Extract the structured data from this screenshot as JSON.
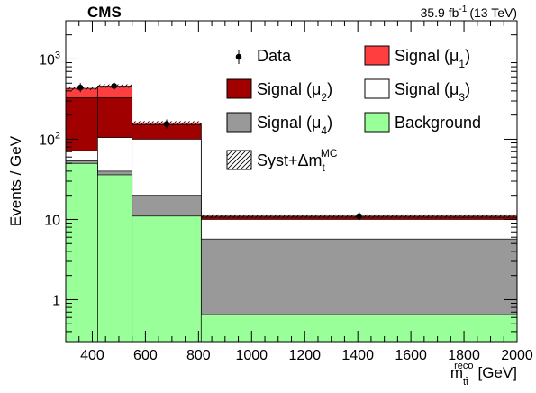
{
  "experiment": "CMS",
  "luminosity": {
    "value": "35.9 fb",
    "exponent": "-1",
    "energy": "(13 TeV)"
  },
  "chart_data": {
    "type": "histogram",
    "yscale": "log",
    "xlim": [
      300,
      2000
    ],
    "ylim": [
      0.3,
      3000
    ],
    "xlabel": {
      "main": "m",
      "sub": "tt̄",
      "sup": "reco",
      "unit": "[GeV]"
    },
    "ylabel": "Events / GeV",
    "x_ticks": [
      400,
      600,
      800,
      1000,
      1200,
      1400,
      1600,
      1800,
      2000
    ],
    "y_ticks": [
      {
        "value": 1,
        "label": "1"
      },
      {
        "value": 10,
        "label": "10"
      },
      {
        "value": 100,
        "base": "10",
        "exp": "2"
      },
      {
        "value": 1000,
        "base": "10",
        "exp": "3"
      }
    ],
    "bin_edges": [
      300,
      420,
      550,
      810,
      2000
    ],
    "series": [
      {
        "name": "Signal (μ1)",
        "color": "#ff3f3f",
        "values": [
          430,
          460,
          160,
          11
        ]
      },
      {
        "name": "Signal (μ2)",
        "color": "#a00000",
        "values": [
          330,
          330,
          152,
          10.7
        ]
      },
      {
        "name": "Signal (μ3)",
        "color": "#ffffff",
        "values": [
          72,
          105,
          100,
          10
        ]
      },
      {
        "name": "Signal (μ4)",
        "color": "#999999",
        "values": [
          54,
          40,
          20,
          5.7
        ]
      },
      {
        "name": "Background",
        "color": "#99ff99",
        "values": [
          50,
          36,
          11,
          0.65
        ]
      }
    ],
    "data_points": [
      {
        "x": 355,
        "y": 440
      },
      {
        "x": 482,
        "y": 460
      },
      {
        "x": 680,
        "y": 155
      },
      {
        "x": 1405,
        "y": 11
      }
    ],
    "legend": {
      "placement": "top-right",
      "entries": [
        {
          "name": "Data",
          "kind": "marker"
        },
        {
          "name": "Signal (μ1)",
          "kind": "box",
          "color": "#ff3f3f",
          "main": "Signal (μ",
          "sub": "1",
          "close": ")"
        },
        {
          "name": "Signal (μ2)",
          "kind": "box",
          "color": "#a00000",
          "main": "Signal (μ",
          "sub": "2",
          "close": ")"
        },
        {
          "name": "Signal (μ3)",
          "kind": "box",
          "color": "#ffffff",
          "main": "Signal (μ",
          "sub": "3",
          "close": ")"
        },
        {
          "name": "Signal (μ4)",
          "kind": "box",
          "color": "#999999",
          "main": "Signal (μ",
          "sub": "4",
          "close": ")"
        },
        {
          "name": "Background",
          "kind": "box",
          "color": "#99ff99"
        },
        {
          "name": "Syst+Δm_t^MC",
          "kind": "hatch",
          "main": "Syst+Δm",
          "sub": "t",
          "sup": "MC"
        }
      ]
    }
  }
}
